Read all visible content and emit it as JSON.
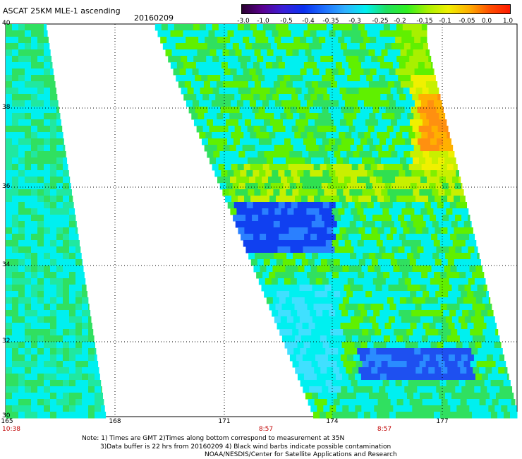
{
  "header": {
    "title": "ASCAT 25KM MLE-1 ascending",
    "date": "20160209"
  },
  "colorbar": {
    "labels": [
      "-3.0",
      "-1.0",
      "-0.5",
      "-0.4",
      "-0.35",
      "-0.3",
      "-0.25",
      "-0.2",
      "-0.15",
      "-0.1",
      "-0.05",
      "0.0",
      "1.0"
    ],
    "colors": [
      "#2a0030",
      "#5a0090",
      "#3b1fd8",
      "#0a30f0",
      "#1e70ff",
      "#2fb0ff",
      "#00f0f0",
      "#20e060",
      "#30f020",
      "#a8f000",
      "#f0f000",
      "#ffb000",
      "#ff5000",
      "#ff1a00"
    ]
  },
  "map": {
    "lat_labels": [
      "40",
      "38",
      "36",
      "34",
      "32",
      "30"
    ],
    "lon_labels": [
      "165",
      "168",
      "171",
      "174",
      "177"
    ],
    "time_labels": [
      "10:38",
      "8:57",
      "8:57"
    ],
    "grid": "dotted"
  },
  "notes": {
    "line1": "Note: 1) Times are GMT 2)Times along bottom correspond to measurement at 35N",
    "line2": "3)Data buffer is 22 hrs from 20160209 4) Black wind barbs indicate possible contamination",
    "line3": "NOAA/NESDIS/Center for Satellite Applications and Research"
  }
}
